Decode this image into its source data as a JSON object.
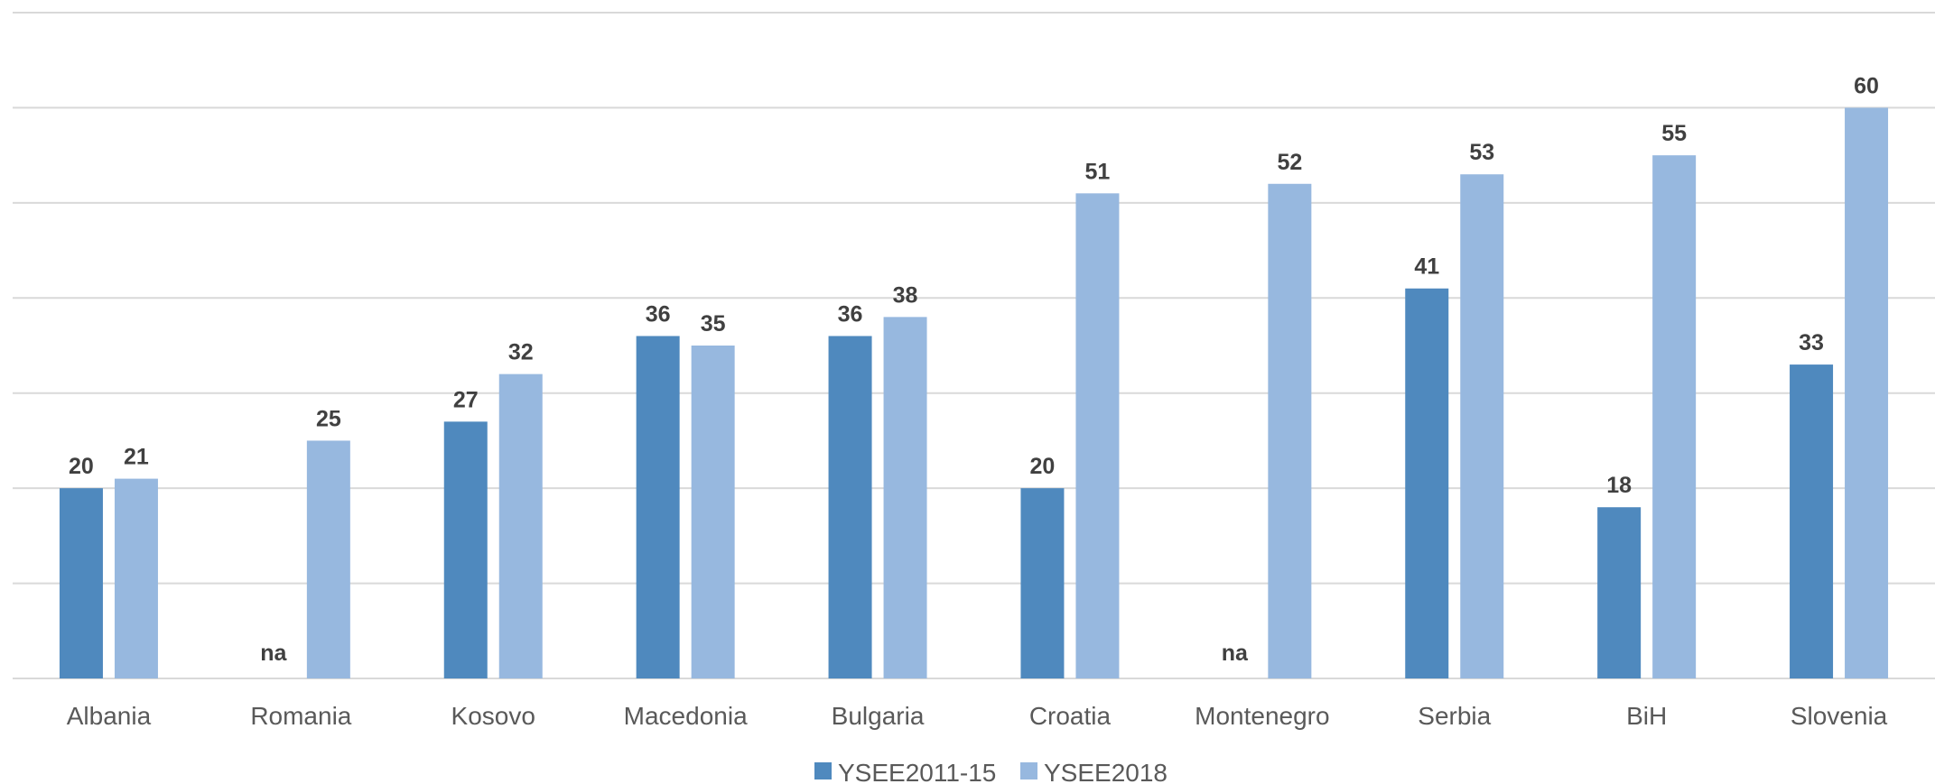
{
  "chart_data": {
    "type": "bar",
    "categories": [
      "Albania",
      "Romania",
      "Kosovo",
      "Macedonia",
      "Bulgaria",
      "Croatia",
      "Montenegro",
      "Serbia",
      "BiH",
      "Slovenia"
    ],
    "series": [
      {
        "name": "YSEE2011-15",
        "color": "#4F89BE",
        "values": [
          20,
          null,
          27,
          36,
          36,
          20,
          null,
          41,
          18,
          33
        ],
        "labels": [
          "20",
          "na",
          "27",
          "36",
          "36",
          "20",
          "na",
          "41",
          "18",
          "33"
        ]
      },
      {
        "name": "YSEE2018",
        "color": "#97B8DF",
        "values": [
          21,
          25,
          32,
          35,
          38,
          51,
          52,
          53,
          55,
          60
        ],
        "labels": [
          "21",
          "25",
          "32",
          "35",
          "38",
          "51",
          "52",
          "53",
          "55",
          "60"
        ]
      }
    ],
    "ylim": [
      0,
      70
    ],
    "grid": true,
    "legend": "bottom-center"
  }
}
